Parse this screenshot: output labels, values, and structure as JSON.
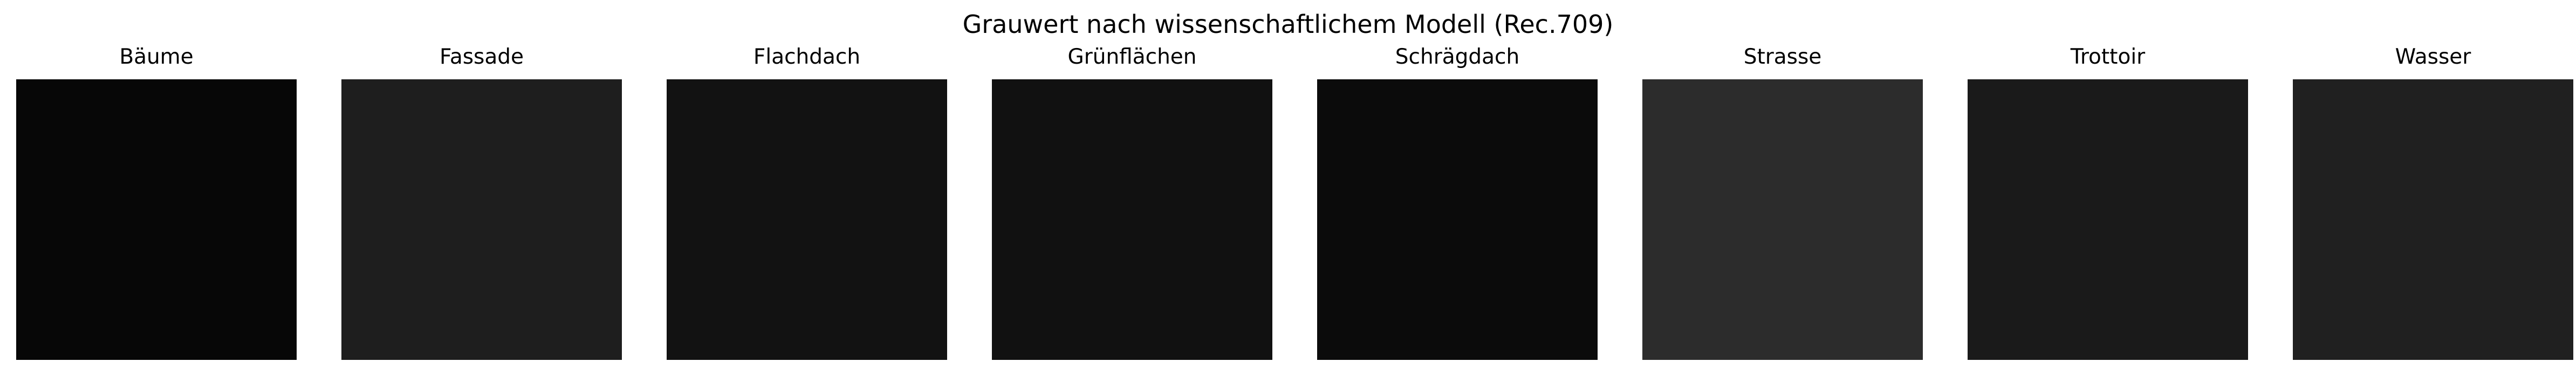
{
  "chart_data": {
    "type": "heatmap",
    "title": "Grauwert nach wissenschaftlichem Modell (Rec.709)",
    "panels": [
      {
        "label": "Bäume",
        "gray_value": 7,
        "color": "#070707"
      },
      {
        "label": "Fassade",
        "gray_value": 30,
        "color": "#1e1e1e"
      },
      {
        "label": "Flachdach",
        "gray_value": 18,
        "color": "#121212"
      },
      {
        "label": "Grünflächen",
        "gray_value": 17,
        "color": "#111111"
      },
      {
        "label": "Schrägdach",
        "gray_value": 11,
        "color": "#0b0b0b"
      },
      {
        "label": "Strasse",
        "gray_value": 44,
        "color": "#2c2c2c"
      },
      {
        "label": "Trottoir",
        "gray_value": 26,
        "color": "#1a1a1a"
      },
      {
        "label": "Wasser",
        "gray_value": 32,
        "color": "#202020"
      }
    ],
    "axes": "off",
    "grid": false
  }
}
